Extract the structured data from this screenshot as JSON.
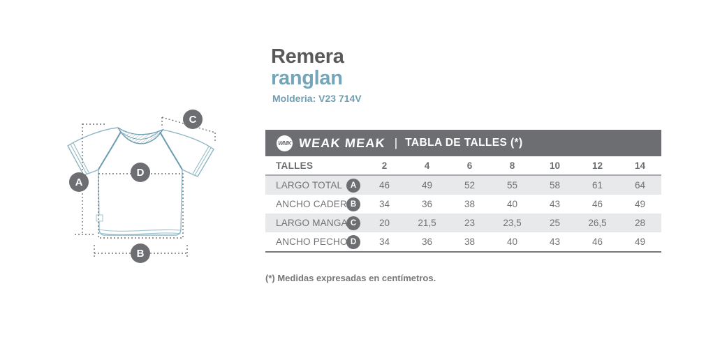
{
  "product": {
    "title": "Remera",
    "subtitle": "ranglan",
    "pattern_info": "Molderia: V23 714V"
  },
  "table_header": {
    "logo_monogram": "WMK",
    "brand_name": "WEAK MEAK",
    "separator": "|",
    "title": "TABLA DE TALLES (*)"
  },
  "size_table": {
    "corner_label": "TALLES",
    "sizes": [
      "2",
      "4",
      "6",
      "8",
      "10",
      "12",
      "14"
    ],
    "rows": [
      {
        "label": "LARGO TOTAL",
        "badge": "A",
        "shaded": true,
        "values": [
          "46",
          "49",
          "52",
          "55",
          "58",
          "61",
          "64"
        ]
      },
      {
        "label": "ANCHO CADERA",
        "badge": "B",
        "shaded": false,
        "values": [
          "34",
          "36",
          "38",
          "40",
          "43",
          "46",
          "49"
        ]
      },
      {
        "label": "LARGO MANGA",
        "badge": "C",
        "shaded": true,
        "values": [
          "20",
          "21,5",
          "23",
          "23,5",
          "25",
          "26,5",
          "28"
        ]
      },
      {
        "label": "ANCHO PECHO",
        "badge": "D",
        "shaded": false,
        "values": [
          "34",
          "36",
          "38",
          "40",
          "43",
          "46",
          "49"
        ]
      }
    ]
  },
  "footnote": "(*) Medidas expresadas en centímetros.",
  "diagram": {
    "badges": {
      "total_length": "A",
      "hip_width": "B",
      "sleeve_length": "C",
      "chest_width": "D"
    }
  },
  "colors": {
    "header_gray": "#6d6e71",
    "title_gray": "#58595b",
    "teal_heading": "#74a5b8",
    "teal_info": "#6f9fb3",
    "row_shade": "#e8e9ea",
    "shirt_line": "#8fb6c4",
    "shirt_seam": "#6b9cb0",
    "dotted_line": "#707275"
  }
}
